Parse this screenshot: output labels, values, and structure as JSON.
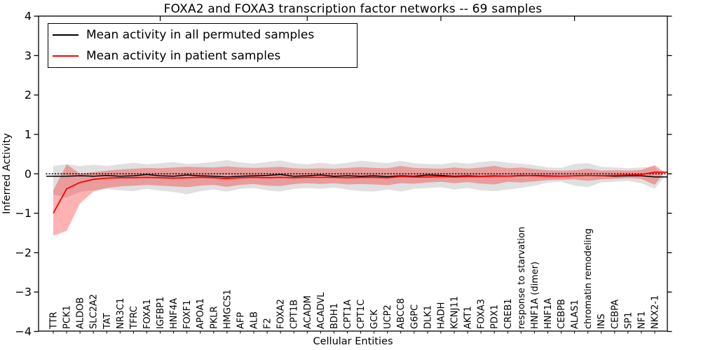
{
  "chart_data": {
    "type": "line",
    "title": "FOXA2 and FOXA3 transcription factor networks -- 69 samples",
    "xlabel": "Cellular Entities",
    "ylabel": "Inferred Activity",
    "ylim": [
      -4,
      4
    ],
    "grid": false,
    "legend_position": "upper left",
    "ytick_values": [
      4,
      3,
      2,
      1,
      0,
      -1,
      -2,
      -3,
      -4
    ],
    "ytick_labels": [
      "4",
      "3",
      "2",
      "1",
      "0",
      "−1",
      "−2",
      "−3",
      "−4"
    ],
    "top_tick_indices": [
      8,
      19,
      29,
      39
    ],
    "reference_line": {
      "y": 0.0,
      "style": "dotted",
      "color": "#000000"
    },
    "categories": [
      "TTR",
      "PCK1",
      "ALDOB",
      "SLC2A2",
      "TAT",
      "NR3C1",
      "TFRC",
      "FOXA1",
      "IGFBP1",
      "HNF4A",
      "FOXF1",
      "APOA1",
      "PKLR",
      "HMGCS1",
      "AFP",
      "ALB",
      "F2",
      "FOXA2",
      "CPT1B",
      "ACADM",
      "ACADVL",
      "BDH1",
      "CPT1A",
      "CPT1C",
      "GCK",
      "UCP2",
      "ABCC8",
      "G6PC",
      "DLK1",
      "HADH",
      "KCNJ11",
      "AKT1",
      "FOXA3",
      "PDX1",
      "CREB1",
      "response to starvation",
      "HNF1A (dimer)",
      "HNF1A",
      "CEBPB",
      "ALAS1",
      "chromatin remodeling",
      "INS",
      "CEBPA",
      "SP1",
      "NF1",
      "NKX2-1"
    ],
    "series": [
      {
        "name": "Mean activity in all permuted samples",
        "color": "#000000",
        "band_color": "rgba(115,115,115,0.22)",
        "values": [
          -0.06,
          -0.06,
          -0.05,
          -0.06,
          -0.04,
          -0.06,
          -0.05,
          -0.02,
          -0.05,
          -0.06,
          -0.03,
          -0.05,
          -0.06,
          -0.08,
          -0.06,
          -0.05,
          -0.04,
          -0.02,
          -0.06,
          -0.05,
          -0.03,
          -0.06,
          -0.05,
          -0.06,
          -0.05,
          -0.07,
          -0.05,
          -0.06,
          -0.03,
          -0.04,
          -0.06,
          -0.05,
          -0.06,
          -0.05,
          -0.06,
          -0.05,
          -0.04,
          -0.05,
          -0.06,
          -0.05,
          -0.04,
          -0.05,
          -0.06,
          -0.05,
          -0.05,
          -0.08
        ],
        "band_upper": [
          0.2,
          0.24,
          0.2,
          0.23,
          0.2,
          0.24,
          0.28,
          0.24,
          0.27,
          0.3,
          0.25,
          0.27,
          0.3,
          0.35,
          0.29,
          0.26,
          0.3,
          0.34,
          0.27,
          0.24,
          0.28,
          0.24,
          0.28,
          0.33,
          0.3,
          0.27,
          0.33,
          0.27,
          0.25,
          0.24,
          0.29,
          0.26,
          0.3,
          0.33,
          0.28,
          0.26,
          0.22,
          0.16,
          0.15,
          0.25,
          0.27,
          0.18,
          0.16,
          0.14,
          0.16,
          0.18
        ],
        "band_lower": [
          -0.52,
          -0.6,
          -0.46,
          -0.42,
          -0.38,
          -0.42,
          -0.44,
          -0.38,
          -0.43,
          -0.46,
          -0.52,
          -0.44,
          -0.4,
          -0.45,
          -0.38,
          -0.36,
          -0.42,
          -0.45,
          -0.38,
          -0.36,
          -0.38,
          -0.35,
          -0.4,
          -0.44,
          -0.45,
          -0.4,
          -0.45,
          -0.38,
          -0.36,
          -0.34,
          -0.4,
          -0.36,
          -0.42,
          -0.44,
          -0.4,
          -0.36,
          -0.3,
          -0.22,
          -0.2,
          -0.3,
          -0.34,
          -0.22,
          -0.2,
          -0.18,
          -0.24,
          -0.38
        ]
      },
      {
        "name": "Mean activity in patient samples",
        "color": "#ff0000",
        "band_color": "rgba(255,0,0,0.30)",
        "values": [
          -1.0,
          -0.38,
          -0.22,
          -0.14,
          -0.11,
          -0.1,
          -0.1,
          -0.09,
          -0.1,
          -0.11,
          -0.1,
          -0.09,
          -0.1,
          -0.12,
          -0.1,
          -0.09,
          -0.1,
          -0.09,
          -0.1,
          -0.09,
          -0.09,
          -0.09,
          -0.1,
          -0.09,
          -0.09,
          -0.1,
          -0.07,
          -0.08,
          -0.08,
          -0.07,
          -0.08,
          -0.07,
          -0.07,
          -0.06,
          -0.06,
          -0.04,
          -0.05,
          -0.06,
          -0.06,
          -0.05,
          -0.04,
          -0.05,
          -0.04,
          -0.03,
          -0.02,
          0.04
        ],
        "band_upper": [
          -0.42,
          0.24,
          0.0,
          0.04,
          0.08,
          0.11,
          0.13,
          0.15,
          0.14,
          0.16,
          0.18,
          0.17,
          0.16,
          0.19,
          0.16,
          0.15,
          0.16,
          0.18,
          0.14,
          0.13,
          0.14,
          0.13,
          0.15,
          0.17,
          0.15,
          0.14,
          0.2,
          0.15,
          0.14,
          0.13,
          0.16,
          0.13,
          0.16,
          0.2,
          0.14,
          0.16,
          0.12,
          0.09,
          0.08,
          0.09,
          0.13,
          0.08,
          0.09,
          0.08,
          0.1,
          0.22
        ],
        "band_lower": [
          -1.57,
          -1.45,
          -0.75,
          -0.45,
          -0.36,
          -0.32,
          -0.3,
          -0.28,
          -0.3,
          -0.32,
          -0.34,
          -0.3,
          -0.28,
          -0.33,
          -0.28,
          -0.26,
          -0.3,
          -0.31,
          -0.26,
          -0.24,
          -0.26,
          -0.24,
          -0.27,
          -0.26,
          -0.27,
          -0.29,
          -0.24,
          -0.25,
          -0.22,
          -0.2,
          -0.24,
          -0.21,
          -0.25,
          -0.27,
          -0.2,
          -0.22,
          -0.19,
          -0.16,
          -0.15,
          -0.14,
          -0.18,
          -0.14,
          -0.13,
          -0.11,
          -0.13,
          -0.28
        ]
      }
    ]
  },
  "legend": {
    "items": [
      {
        "label": "Mean activity in all permuted samples",
        "color": "#000000"
      },
      {
        "label": "Mean activity in patient samples",
        "color": "#ff0000"
      }
    ]
  }
}
